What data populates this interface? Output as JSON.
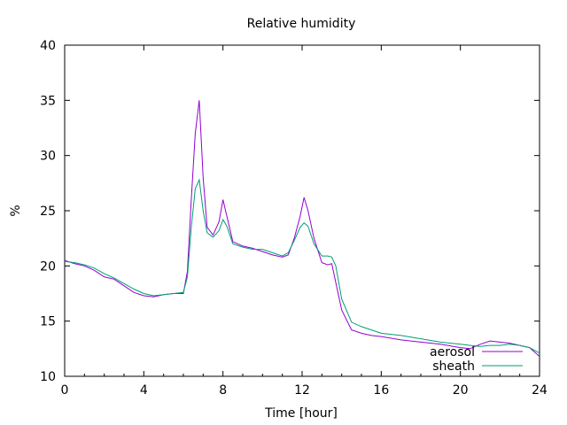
{
  "chart_data": {
    "type": "line",
    "title": "Relative humidity",
    "xlabel": "Time [hour]",
    "ylabel": "%",
    "xlim": [
      0,
      24
    ],
    "ylim": [
      10,
      40
    ],
    "xticks": [
      0,
      4,
      8,
      12,
      16,
      20,
      24
    ],
    "yticks": [
      10,
      15,
      20,
      25,
      30,
      35,
      40
    ],
    "grid": false,
    "legend_position": "bottom-right",
    "series": [
      {
        "name": "aerosol",
        "color": "#9400d3",
        "x": [
          0,
          0.5,
          1,
          1.5,
          2,
          2.5,
          3,
          3.5,
          4,
          4.5,
          5,
          5.5,
          6,
          6.2,
          6.4,
          6.6,
          6.8,
          7.0,
          7.2,
          7.5,
          7.8,
          8.0,
          8.2,
          8.5,
          9,
          9.5,
          10,
          10.5,
          11,
          11.3,
          11.6,
          11.9,
          12.1,
          12.3,
          12.6,
          13.0,
          13.3,
          13.5,
          13.7,
          14.0,
          14.5,
          15,
          15.5,
          16,
          17,
          18,
          19,
          20,
          20.5,
          21,
          21.5,
          22,
          22.5,
          23,
          23.5,
          24
        ],
        "values": [
          20.5,
          20.2,
          20.0,
          19.6,
          19.0,
          18.8,
          18.2,
          17.6,
          17.3,
          17.2,
          17.4,
          17.5,
          17.5,
          19.5,
          26.0,
          32.0,
          35.0,
          28.0,
          23.5,
          22.8,
          24.0,
          26.0,
          24.5,
          22.2,
          21.8,
          21.6,
          21.3,
          21.0,
          20.8,
          21.0,
          22.5,
          24.5,
          26.2,
          25.0,
          22.5,
          20.3,
          20.1,
          20.2,
          18.5,
          16.0,
          14.2,
          13.9,
          13.7,
          13.6,
          13.3,
          13.1,
          12.9,
          12.6,
          12.5,
          12.9,
          13.2,
          13.1,
          13.0,
          12.8,
          12.6,
          11.8
        ]
      },
      {
        "name": "sheath",
        "color": "#009e73",
        "x": [
          0,
          0.5,
          1,
          1.5,
          2,
          2.5,
          3,
          3.5,
          4,
          4.5,
          5,
          5.5,
          6,
          6.2,
          6.4,
          6.6,
          6.8,
          7.0,
          7.2,
          7.5,
          7.8,
          8.0,
          8.2,
          8.5,
          9,
          9.5,
          10,
          10.5,
          11,
          11.3,
          11.6,
          11.9,
          12.1,
          12.3,
          12.6,
          13.0,
          13.3,
          13.5,
          13.7,
          14.0,
          14.5,
          15,
          15.5,
          16,
          17,
          18,
          19,
          20,
          20.5,
          21,
          21.5,
          22,
          22.5,
          23,
          23.5,
          24
        ],
        "values": [
          20.4,
          20.3,
          20.1,
          19.8,
          19.3,
          18.9,
          18.4,
          17.9,
          17.5,
          17.3,
          17.4,
          17.5,
          17.6,
          19.0,
          23.5,
          27.0,
          27.8,
          25.0,
          23.0,
          22.6,
          23.2,
          24.2,
          23.6,
          22.0,
          21.7,
          21.5,
          21.5,
          21.2,
          20.9,
          21.2,
          22.3,
          23.5,
          23.9,
          23.6,
          22.0,
          20.9,
          20.9,
          20.8,
          20.0,
          17.0,
          14.9,
          14.5,
          14.2,
          13.9,
          13.7,
          13.4,
          13.1,
          12.9,
          12.8,
          12.7,
          12.8,
          12.8,
          12.9,
          12.8,
          12.6,
          12.1
        ]
      }
    ]
  }
}
